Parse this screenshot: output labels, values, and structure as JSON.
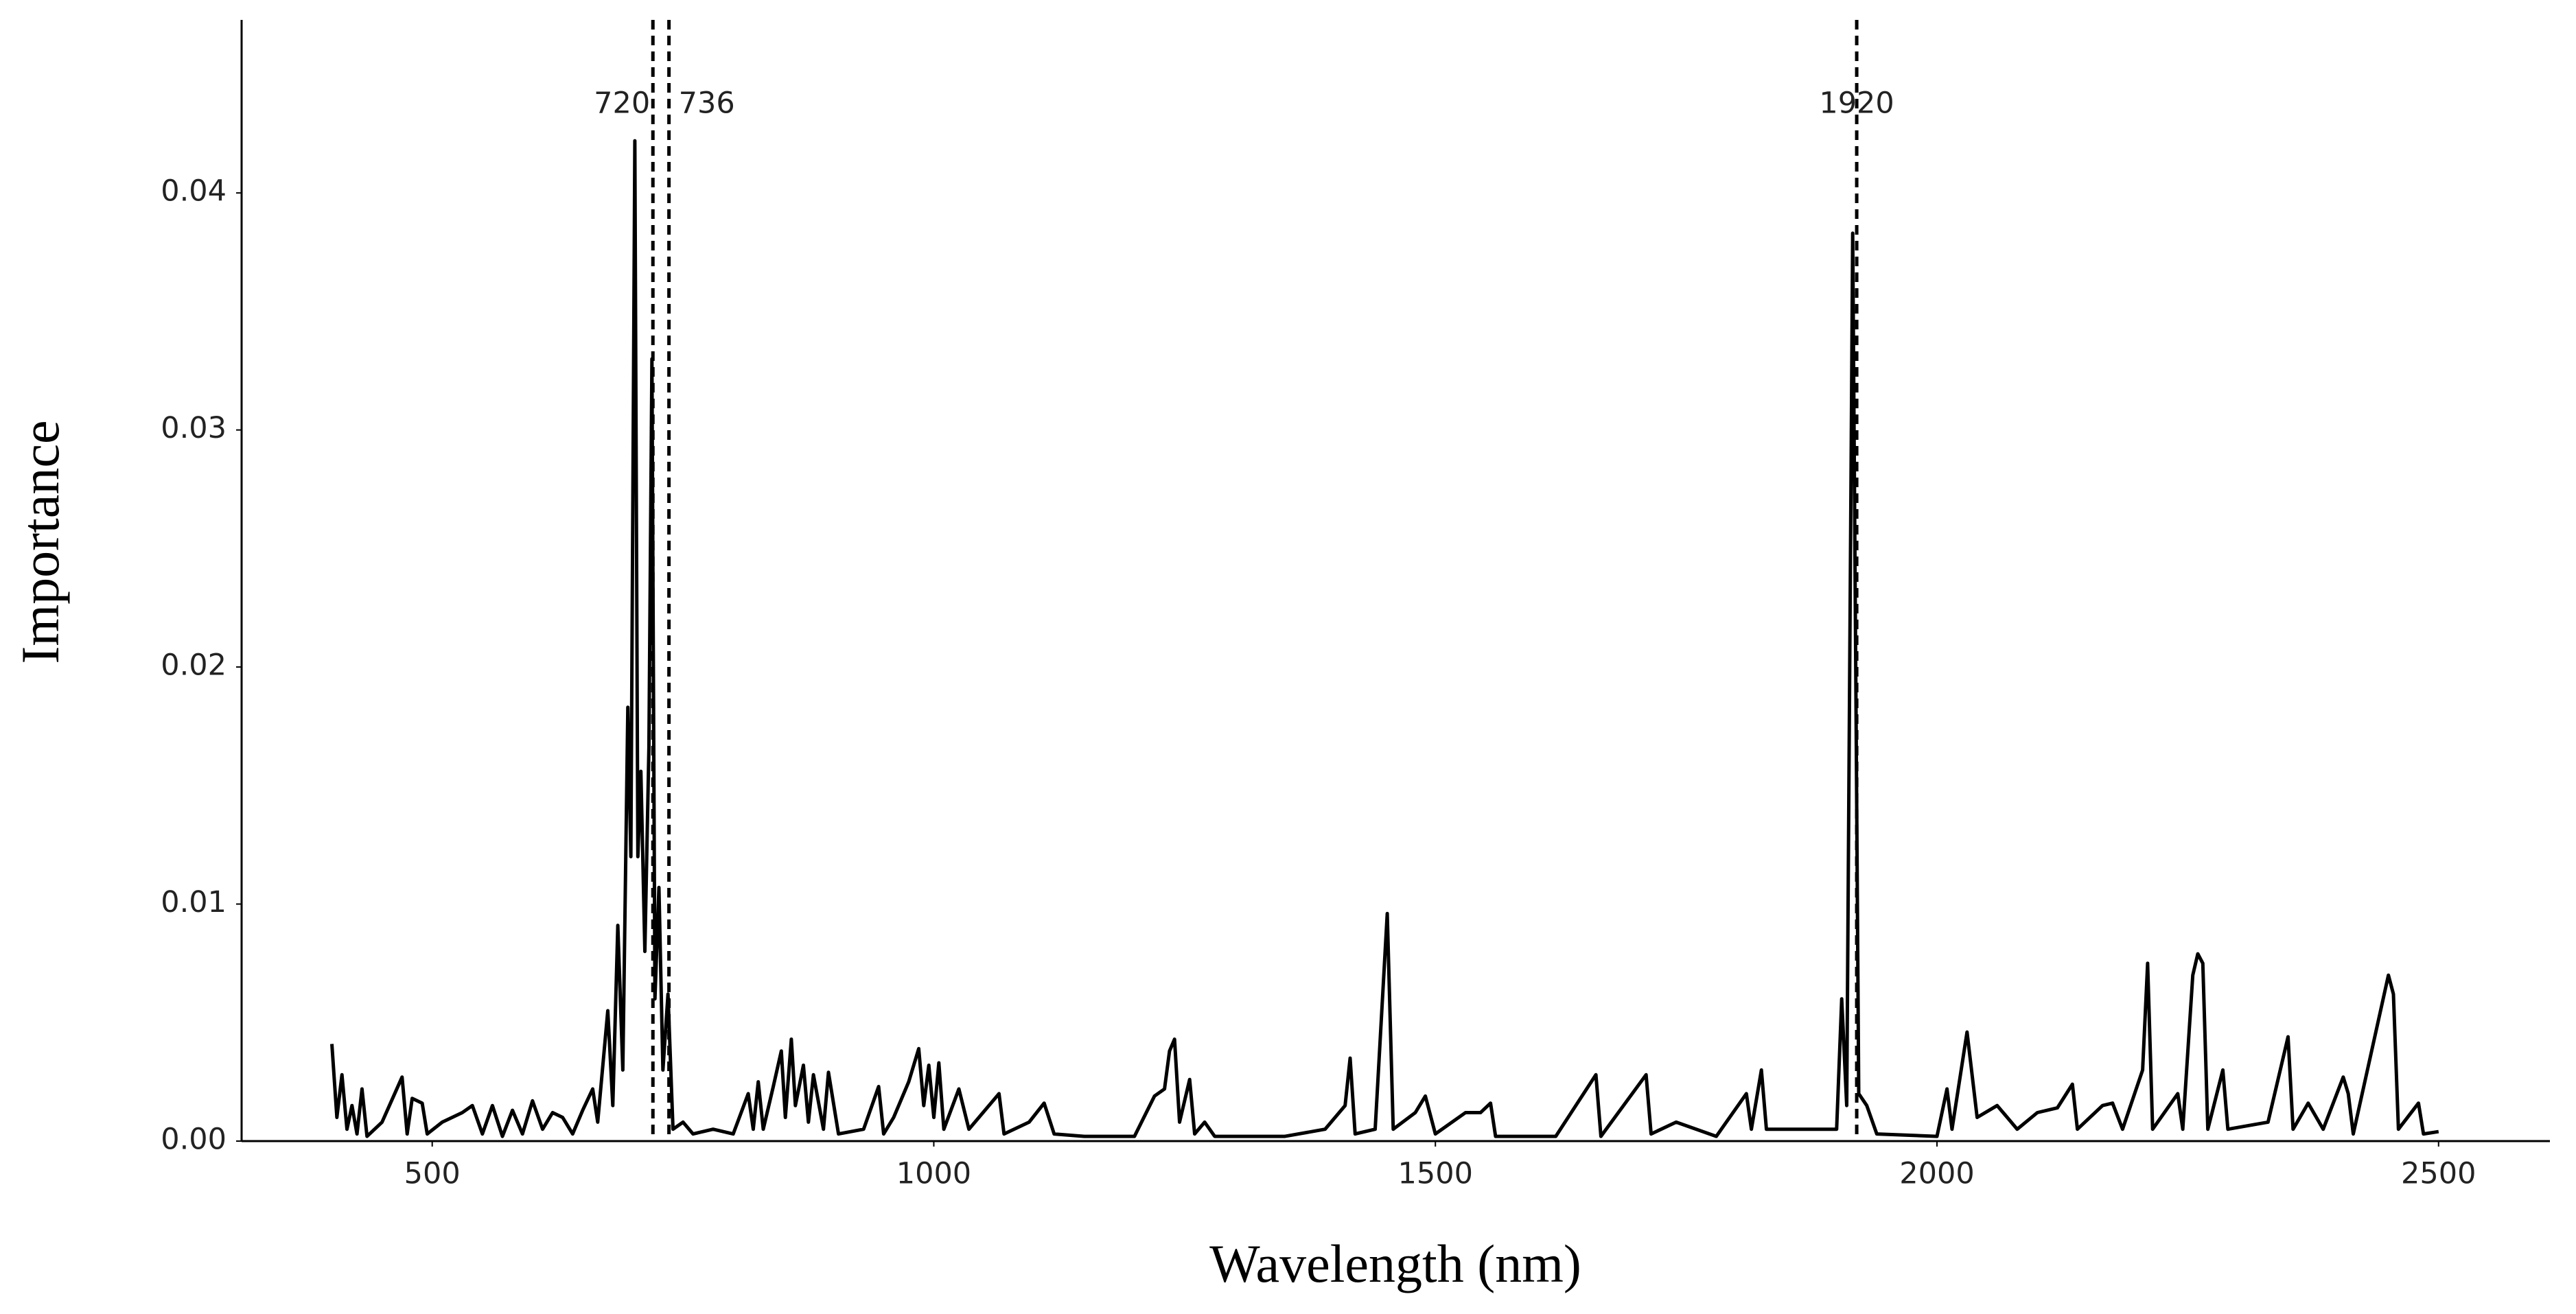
{
  "chart_data": {
    "type": "line",
    "x_label": "Wavelength (nm)",
    "y_label": "Importance",
    "color": "#000000",
    "x": [
      400,
      405,
      410,
      415,
      420,
      425,
      430,
      435,
      450,
      470,
      475,
      480,
      490,
      495,
      510,
      530,
      540,
      550,
      560,
      570,
      580,
      590,
      600,
      610,
      620,
      630,
      640,
      650,
      660,
      665,
      675,
      680,
      685,
      690,
      695,
      698,
      702,
      705,
      708,
      712,
      716,
      719,
      722,
      726,
      730,
      735,
      740,
      750,
      760,
      780,
      800,
      815,
      820,
      825,
      830,
      840,
      848,
      852,
      858,
      862,
      870,
      875,
      880,
      890,
      895,
      905,
      930,
      945,
      950,
      960,
      975,
      985,
      990,
      995,
      1000,
      1005,
      1010,
      1025,
      1035,
      1065,
      1070,
      1095,
      1110,
      1120,
      1150,
      1200,
      1220,
      1230,
      1235,
      1240,
      1245,
      1255,
      1260,
      1270,
      1280,
      1350,
      1390,
      1410,
      1415,
      1420,
      1440,
      1452,
      1458,
      1480,
      1490,
      1500,
      1530,
      1545,
      1555,
      1560,
      1620,
      1660,
      1665,
      1710,
      1715,
      1740,
      1780,
      1810,
      1815,
      1825,
      1830,
      1860,
      1900,
      1905,
      1910,
      1916,
      1922,
      1930,
      1940,
      2000,
      2010,
      2015,
      2030,
      2040,
      2060,
      2080,
      2100,
      2120,
      2135,
      2140,
      2165,
      2175,
      2185,
      2205,
      2210,
      2215,
      2240,
      2245,
      2255,
      2260,
      2265,
      2270,
      2285,
      2290,
      2330,
      2350,
      2355,
      2370,
      2385,
      2405,
      2410,
      2415,
      2450,
      2455,
      2460,
      2480,
      2485,
      2500
    ],
    "values": [
      0.0041,
      0.001,
      0.0028,
      0.0005,
      0.0015,
      0.0003,
      0.0022,
      0.0002,
      0.0008,
      0.0027,
      0.0003,
      0.0018,
      0.0016,
      0.0003,
      0.0008,
      0.0012,
      0.0015,
      0.0003,
      0.0015,
      0.0002,
      0.0013,
      0.0003,
      0.0017,
      0.0005,
      0.0012,
      0.001,
      0.0003,
      0.0013,
      0.0022,
      0.0008,
      0.0055,
      0.0015,
      0.0091,
      0.003,
      0.0183,
      0.012,
      0.0422,
      0.012,
      0.0156,
      0.008,
      0.0166,
      0.033,
      0.006,
      0.0107,
      0.003,
      0.0062,
      0.0005,
      0.0008,
      0.0003,
      0.0005,
      0.0003,
      0.002,
      0.0005,
      0.0025,
      0.0005,
      0.0023,
      0.0038,
      0.001,
      0.0043,
      0.0015,
      0.0032,
      0.0008,
      0.0028,
      0.0005,
      0.0029,
      0.0003,
      0.0005,
      0.0023,
      0.0003,
      0.001,
      0.0025,
      0.0039,
      0.0015,
      0.0032,
      0.001,
      0.0033,
      0.0005,
      0.0022,
      0.0005,
      0.002,
      0.0003,
      0.0008,
      0.0016,
      0.0003,
      0.0002,
      0.0002,
      0.0019,
      0.0022,
      0.0038,
      0.0043,
      0.0008,
      0.0026,
      0.0003,
      0.0008,
      0.0002,
      0.0002,
      0.0005,
      0.0015,
      0.0035,
      0.0003,
      0.0005,
      0.0096,
      0.0005,
      0.0012,
      0.0019,
      0.0003,
      0.0012,
      0.0012,
      0.0016,
      0.0002,
      0.0002,
      0.0028,
      0.0002,
      0.0028,
      0.0003,
      0.0008,
      0.0002,
      0.002,
      0.0005,
      0.003,
      0.0005,
      0.0005,
      0.0005,
      0.006,
      0.0015,
      0.0383,
      0.002,
      0.0015,
      0.0003,
      0.0002,
      0.0022,
      0.0005,
      0.0046,
      0.001,
      0.0015,
      0.0005,
      0.0012,
      0.0014,
      0.0024,
      0.0005,
      0.0015,
      0.0016,
      0.0005,
      0.003,
      0.0075,
      0.0005,
      0.002,
      0.0005,
      0.007,
      0.0079,
      0.0075,
      0.0005,
      0.003,
      0.0005,
      0.0008,
      0.0044,
      0.0005,
      0.0016,
      0.0005,
      0.0027,
      0.002,
      0.0003,
      0.007,
      0.0062,
      0.0005,
      0.0016,
      0.0003,
      0.0004
    ],
    "vlines": [
      720,
      736,
      1920
    ],
    "xlim": [
      310,
      2611
    ],
    "ylim": [
      0,
      0.0473
    ],
    "xticks": [
      500,
      1000,
      1500,
      2000,
      2500
    ],
    "yticks": [
      {
        "value": 0,
        "label": "0.00"
      },
      0.01,
      0.02,
      0.03,
      0.04
    ]
  }
}
